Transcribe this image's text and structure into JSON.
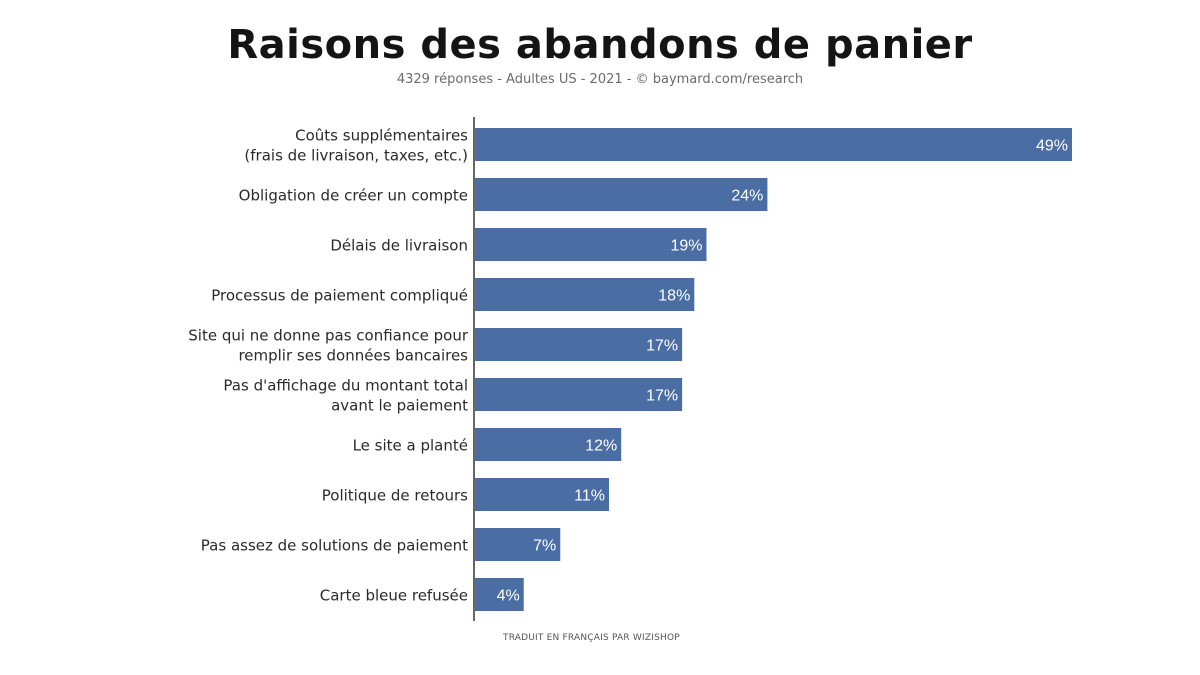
{
  "chart_data": {
    "type": "bar",
    "orientation": "horizontal",
    "title": "Raisons des abandons de panier",
    "subtitle": "4329 réponses - Adultes US - 2021 - © baymard.com/research",
    "footer": "TRADUIT EN FRANÇAIS PAR WIZISHOP",
    "categories": [
      [
        "Coûts supplémentaires",
        "(frais de livraison, taxes, etc.)"
      ],
      [
        "Obligation de créer un compte"
      ],
      [
        "Délais de livraison"
      ],
      [
        "Processus de paiement compliqué"
      ],
      [
        "Site qui ne donne pas confiance pour",
        "remplir ses données bancaires"
      ],
      [
        "Pas d'affichage du montant total",
        "avant le paiement"
      ],
      [
        "Le site a planté"
      ],
      [
        "Politique de retours"
      ],
      [
        "Pas assez de solutions de paiement"
      ],
      [
        "Carte bleue refusée"
      ]
    ],
    "values": [
      49,
      24,
      19,
      18,
      17,
      17,
      12,
      11,
      7,
      4
    ],
    "value_labels": [
      "49%",
      "24%",
      "19%",
      "18%",
      "17%",
      "17%",
      "12%",
      "11%",
      "7%",
      "4%"
    ],
    "unit": "%",
    "xlim": [
      0,
      49
    ],
    "grid": false,
    "legend": "none",
    "bar_color": "#4a6da4",
    "axis_color": "#333333",
    "label_color": "#ffffff"
  }
}
